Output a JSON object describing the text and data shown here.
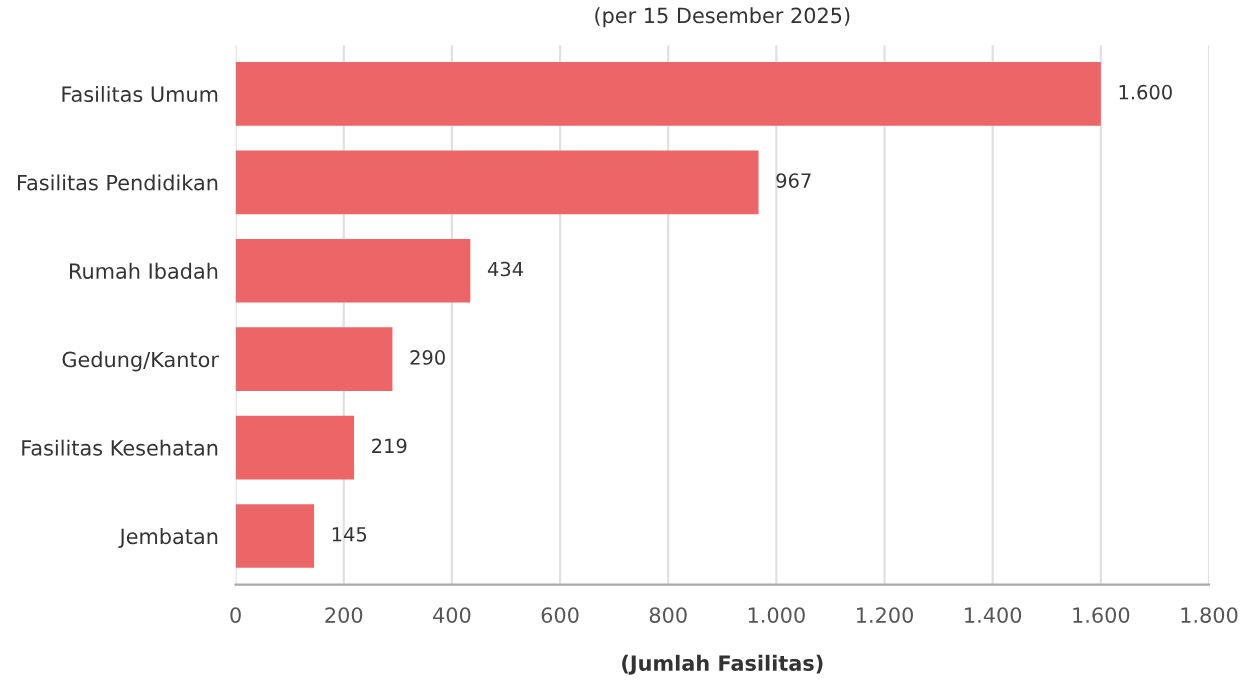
{
  "chart_data": {
    "type": "bar",
    "orientation": "horizontal",
    "title": "(per 15 Desember 2025)",
    "xlabel": "(Jumlah Fasilitas)",
    "categories": [
      "Fasilitas Umum",
      "Fasilitas Pendidikan",
      "Rumah Ibadah",
      "Gedung/Kantor",
      "Fasilitas Kesehatan",
      "Jembatan"
    ],
    "values": [
      1600,
      967,
      434,
      290,
      219,
      145
    ],
    "value_labels": [
      "1.600",
      "967",
      "434",
      "290",
      "219",
      "145"
    ],
    "color": "#ec6667",
    "xlim": [
      0,
      1800
    ],
    "xticks": [
      0,
      200,
      400,
      600,
      800,
      {
        "value": 1000,
        "label": "1.000"
      },
      {
        "value": 1200,
        "label": "1.200"
      },
      {
        "value": 1400,
        "label": "1.400"
      },
      {
        "value": 1600,
        "label": "1.600"
      },
      {
        "value": 1800,
        "label": "1.800"
      }
    ],
    "grid": "x",
    "legend": false
  }
}
